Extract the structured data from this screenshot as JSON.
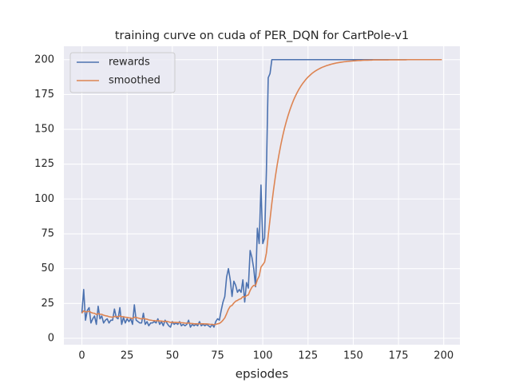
{
  "chart_data": {
    "type": "line",
    "title": "training curve on cuda of PER_DQN for CartPole-v1",
    "x_label": "epsiodes",
    "x": [
      0,
      1,
      2,
      3,
      4,
      5,
      6,
      7,
      8,
      9,
      10,
      11,
      12,
      13,
      14,
      15,
      16,
      17,
      18,
      19,
      20,
      21,
      22,
      23,
      24,
      25,
      26,
      27,
      28,
      29,
      30,
      31,
      32,
      33,
      34,
      35,
      36,
      37,
      38,
      39,
      40,
      41,
      42,
      43,
      44,
      45,
      46,
      47,
      48,
      49,
      50,
      51,
      52,
      53,
      54,
      55,
      56,
      57,
      58,
      59,
      60,
      61,
      62,
      63,
      64,
      65,
      66,
      67,
      68,
      69,
      70,
      71,
      72,
      73,
      74,
      75,
      76,
      77,
      78,
      79,
      80,
      81,
      82,
      83,
      84,
      85,
      86,
      87,
      88,
      89,
      90,
      91,
      92,
      93,
      94,
      95,
      96,
      97,
      98,
      99,
      100,
      101,
      102,
      103,
      104,
      105,
      106,
      107,
      108,
      109,
      110,
      111,
      112,
      113,
      114,
      115,
      116,
      117,
      118,
      119,
      120,
      121,
      122,
      123,
      124,
      125,
      126,
      127,
      128,
      129,
      130,
      131,
      132,
      133,
      134,
      135,
      136,
      137,
      138,
      139,
      140,
      141,
      142,
      143,
      144,
      145,
      146,
      147,
      148,
      149,
      150,
      151,
      152,
      153,
      154,
      155,
      156,
      157,
      158,
      159,
      160,
      161,
      162,
      163,
      164,
      165,
      166,
      167,
      168,
      169,
      170,
      171,
      172,
      173,
      174,
      175,
      176,
      177,
      178,
      179,
      180,
      181,
      182,
      183,
      184,
      185,
      186,
      187,
      188,
      189,
      190,
      191,
      192,
      193,
      194,
      195,
      196,
      197,
      198,
      199
    ],
    "series": [
      {
        "name": "rewards",
        "color": "#4c72b0",
        "values": [
          18,
          35,
          13,
          20,
          22,
          11,
          14,
          16,
          10,
          23,
          14,
          16,
          11,
          13,
          14,
          11,
          13,
          13,
          21,
          15,
          14,
          22,
          10,
          15,
          11,
          14,
          12,
          14,
          10,
          24,
          13,
          12,
          11,
          11,
          18,
          10,
          12,
          9,
          11,
          11,
          12,
          11,
          14,
          10,
          12,
          9,
          13,
          11,
          9,
          8,
          12,
          10,
          11,
          10,
          12,
          9,
          10,
          9,
          10,
          13,
          8,
          10,
          9,
          10,
          9,
          12,
          9,
          10,
          9,
          10,
          9,
          8,
          10,
          8,
          12,
          14,
          13,
          20,
          26,
          30,
          44,
          50,
          42,
          30,
          41,
          38,
          33,
          35,
          33,
          42,
          26,
          40,
          36,
          63,
          58,
          50,
          37,
          79,
          68,
          110,
          68,
          72,
          120,
          187,
          190,
          200,
          200,
          200,
          200,
          200,
          200,
          200,
          200,
          200,
          200,
          200,
          200,
          200,
          200,
          200,
          200,
          200,
          200,
          200,
          200,
          200,
          200,
          200,
          200,
          200,
          200,
          200,
          200,
          200,
          200,
          200,
          200,
          200,
          200,
          200,
          200,
          200,
          200,
          200,
          200,
          200,
          200,
          200,
          200,
          200,
          200,
          200,
          200,
          200,
          200,
          200,
          200,
          200,
          200,
          200,
          200,
          200,
          200,
          200,
          200,
          200,
          200,
          200,
          200,
          200,
          200,
          200,
          200,
          200,
          200,
          200,
          200,
          200,
          200,
          200,
          200,
          200,
          200,
          200,
          200,
          200,
          200,
          200,
          200,
          200,
          200,
          200,
          200,
          200,
          200,
          200,
          200,
          200,
          200,
          200
        ]
      },
      {
        "name": "smoothed",
        "color": "#dd8452",
        "values": [
          18,
          19.7,
          19.0,
          19.1,
          19.4,
          18.6,
          18.1,
          17.9,
          17.1,
          17.7,
          17.3,
          17.2,
          16.6,
          16.2,
          16.0,
          15.5,
          15.3,
          15.1,
          15.7,
          15.6,
          15.4,
          16.1,
          15.5,
          15.5,
          15.1,
          15.0,
          14.7,
          14.6,
          14.1,
          15.1,
          14.9,
          14.6,
          14.2,
          13.9,
          14.3,
          13.9,
          13.7,
          13.2,
          13.0,
          12.8,
          12.7,
          12.5,
          12.7,
          12.4,
          12.4,
          12.1,
          12.2,
          12.1,
          11.8,
          11.4,
          11.5,
          11.4,
          11.4,
          11.3,
          11.4,
          11.2,
          11.1,
          10.9,
          10.8,
          11.0,
          10.7,
          10.6,
          10.4,
          10.4,
          10.3,
          10.5,
          10.4,
          10.4,
          10.3,
          10.3,
          10.2,
          10.0,
          10.0,
          9.8,
          10.0,
          10.4,
          10.7,
          11.6,
          13.0,
          14.7,
          17.6,
          20.8,
          22.9,
          23.6,
          25.3,
          26.6,
          27.2,
          28.0,
          28.5,
          29.9,
          29.5,
          30.6,
          31.1,
          34.3,
          36.7,
          38.0,
          37.9,
          42.0,
          44.6,
          51.1,
          52.8,
          54.7,
          61.2,
          73.8,
          85.4,
          96.9,
          107.2,
          116.5,
          124.8,
          132.3,
          139.1,
          145.2,
          150.7,
          155.6,
          160.0,
          164.0,
          167.6,
          170.9,
          173.8,
          176.4,
          178.8,
          180.9,
          182.8,
          184.5,
          186.1,
          187.5,
          188.7,
          189.9,
          190.9,
          191.8,
          192.6,
          193.3,
          194.0,
          194.6,
          195.1,
          195.6,
          196.0,
          196.4,
          196.8,
          197.1,
          197.4,
          197.7,
          197.9,
          198.1,
          198.3,
          198.5,
          198.6,
          198.8,
          198.9,
          199.0,
          199.1,
          199.2,
          199.3,
          199.4,
          199.4,
          199.5,
          199.6,
          199.6,
          199.6,
          199.7,
          199.7,
          199.8,
          199.8,
          199.8,
          199.8,
          199.8,
          199.8,
          199.8,
          199.8,
          199.8,
          199.9,
          199.9,
          199.9,
          199.9,
          199.9,
          199.9,
          199.9,
          199.9,
          199.9,
          199.9,
          200.0,
          200.0,
          200.0,
          200.0,
          200.0,
          200.0,
          200.0,
          200.0,
          200.0,
          200.0,
          200.0,
          200.0,
          200.0,
          200.0,
          200.0,
          200.0,
          200.0,
          200.0,
          200.0,
          200.0
        ]
      }
    ],
    "xlim": [
      -9.95,
      208.95
    ],
    "ylim": [
      -4.6,
      209.6
    ],
    "xticks": [
      0,
      25,
      50,
      75,
      100,
      125,
      150,
      175,
      200
    ],
    "yticks": [
      0,
      25,
      50,
      75,
      100,
      125,
      150,
      175,
      200
    ],
    "grid": true,
    "legend": "upper left"
  }
}
